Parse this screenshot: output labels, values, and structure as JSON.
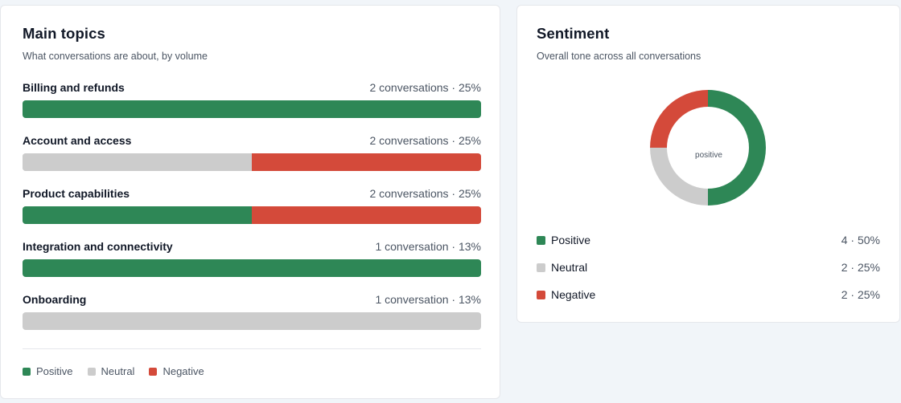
{
  "topics_card": {
    "title": "Main topics",
    "subtitle": "What conversations are about, by volume",
    "topics": [
      {
        "name": "Billing and refunds",
        "meta": "2 conversations · 25%",
        "positive": 1.0,
        "neutral": 0.0,
        "negative": 0.0
      },
      {
        "name": "Account and access",
        "meta": "2 conversations · 25%",
        "positive": 0.0,
        "neutral": 0.5,
        "negative": 0.5
      },
      {
        "name": "Product capabilities",
        "meta": "2 conversations · 25%",
        "positive": 0.5,
        "neutral": 0.0,
        "negative": 0.5
      },
      {
        "name": "Integration and connectivity",
        "meta": "1 conversation · 13%",
        "positive": 1.0,
        "neutral": 0.0,
        "negative": 0.0
      },
      {
        "name": "Onboarding",
        "meta": "1 conversation · 13%",
        "positive": 0.0,
        "neutral": 1.0,
        "negative": 0.0
      }
    ],
    "legend": [
      "Positive",
      "Neutral",
      "Negative"
    ]
  },
  "sentiment_card": {
    "title": "Sentiment",
    "subtitle": "Overall tone across all conversations",
    "donut_center": "positive",
    "rows": [
      {
        "label": "Positive",
        "value": "4 · 50%",
        "count": 4,
        "color_key": "positive"
      },
      {
        "label": "Neutral",
        "value": "2 · 25%",
        "count": 2,
        "color_key": "neutral"
      },
      {
        "label": "Negative",
        "value": "2 · 25%",
        "count": 2,
        "color_key": "negative"
      }
    ]
  },
  "colors": {
    "positive": "#2e8756",
    "neutral": "#cccccc",
    "negative": "#d44a3a"
  }
}
